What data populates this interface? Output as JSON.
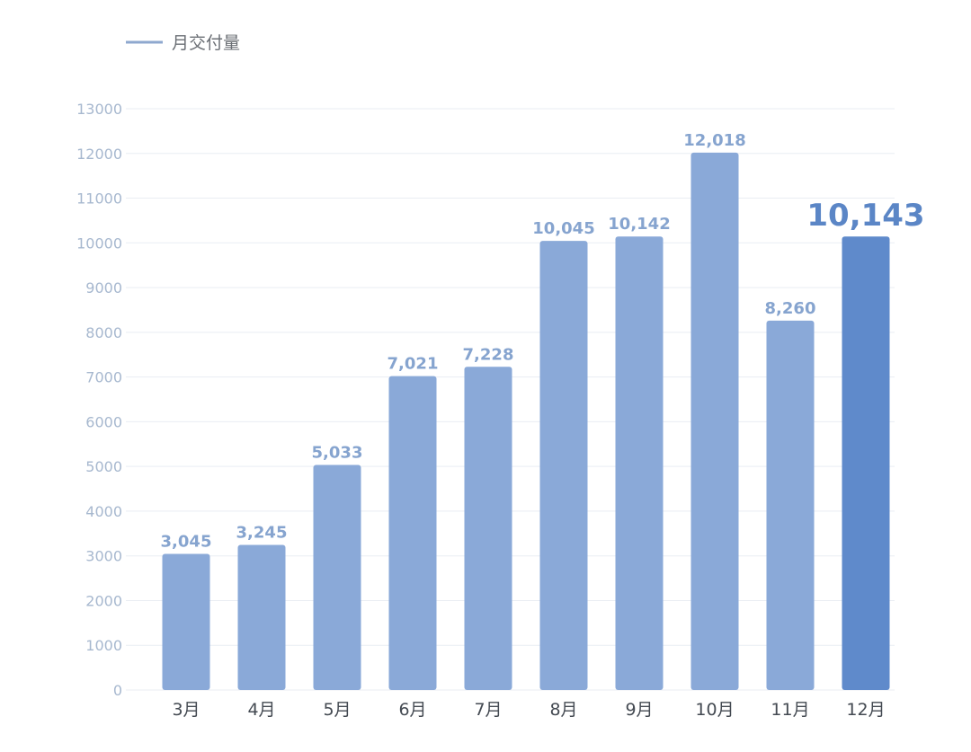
{
  "chart_data": {
    "type": "bar",
    "legend": {
      "label": "月交付量",
      "placement": "top-left"
    },
    "categories": [
      "3月",
      "4月",
      "5月",
      "6月",
      "7月",
      "8月",
      "9月",
      "10月",
      "11月",
      "12月"
    ],
    "values": [
      3045,
      3245,
      5033,
      7021,
      7228,
      10045,
      10142,
      12018,
      8260,
      10143
    ],
    "data_labels": [
      "3,045",
      "3,245",
      "5,033",
      "7,021",
      "7,228",
      "10,045",
      "10,142",
      "12,018",
      "8,260",
      "10,143"
    ],
    "highlight_index": 9,
    "ylim": [
      0,
      13000
    ],
    "y_ticks": [
      0,
      1000,
      2000,
      3000,
      4000,
      5000,
      6000,
      7000,
      8000,
      9000,
      10000,
      11000,
      12000,
      13000
    ],
    "y_tick_labels": [
      "0",
      "1000",
      "2000",
      "3000",
      "4000",
      "5000",
      "6000",
      "7000",
      "8000",
      "9000",
      "10000",
      "11000",
      "12000",
      "13000"
    ],
    "grid": true,
    "colors": {
      "bar": "#8aa9d8",
      "bar_highlight": "#5f8acb",
      "label": "#86a4cf",
      "label_highlight": "#5b86c6",
      "legend_line": "#8fa8cf",
      "grid": "#e9edf3",
      "y_tick": "#a7b8cf",
      "x_tick": "#444a52"
    }
  }
}
